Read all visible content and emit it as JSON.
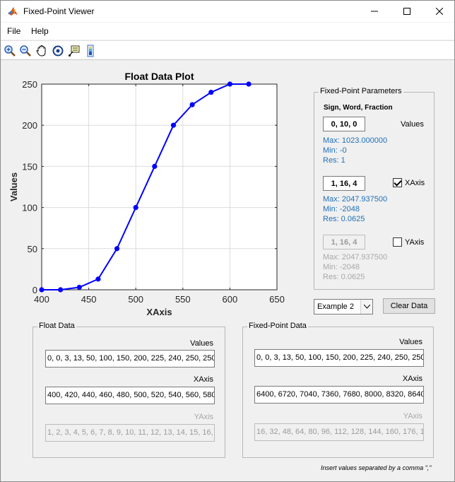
{
  "window": {
    "title": "Fixed-Point Viewer",
    "icon": "matlab-icon"
  },
  "menu": {
    "file": "File",
    "help": "Help"
  },
  "toolbar": {
    "tools": [
      "zoom-in-icon",
      "zoom-out-icon",
      "pan-icon",
      "rotate-icon",
      "data-cursor-icon",
      "colorbar-icon"
    ]
  },
  "chart_data": {
    "type": "line",
    "title": "Float Data Plot",
    "xlabel": "XAxis",
    "ylabel": "Values",
    "xlim": [
      400,
      650
    ],
    "ylim": [
      0,
      250
    ],
    "xticks": [
      400,
      450,
      500,
      550,
      600,
      650
    ],
    "yticks": [
      0,
      50,
      100,
      150,
      200,
      250
    ],
    "grid": true,
    "series": [
      {
        "color": "#0000ff",
        "x": [
          400,
          420,
          440,
          460,
          480,
          500,
          520,
          540,
          560,
          580,
          600,
          620
        ],
        "y": [
          0,
          0,
          3,
          13,
          50,
          100,
          150,
          200,
          225,
          240,
          250,
          250
        ]
      }
    ]
  },
  "params": {
    "legend": "Fixed-Point Parameters",
    "header": "Sign, Word, Fraction",
    "values": {
      "box": "0, 10, 0",
      "label": "Values",
      "max": "Max:  1023.000000",
      "min": "Min:  -0",
      "res": "Res:  1"
    },
    "xaxis": {
      "box": "1, 16, 4",
      "label": "XAxis",
      "checked": true,
      "max": "Max:  2047.937500",
      "min": "Min:  -2048",
      "res": "Res:  0.0625"
    },
    "yaxis": {
      "box": "1, 16, 4",
      "label": "YAxis",
      "checked": false,
      "max": "Max:  2047.937500",
      "min": "Min:  -2048",
      "res": "Res:  0.0625"
    }
  },
  "example_select": "Example 2",
  "clear_button": "Clear Data",
  "float_data": {
    "legend": "Float Data",
    "values_label": "Values",
    "values": "0, 0, 3, 13, 50, 100, 150, 200, 225, 240, 250, 250",
    "xaxis_label": "XAxis",
    "xaxis": "400, 420, 440, 460, 480, 500, 520, 540, 560, 580",
    "yaxis_label": "YAxis",
    "yaxis": "1, 2, 3, 4, 5, 6, 7, 8, 9, 10, 11, 12, 13, 14, 15, 16,"
  },
  "fixed_data": {
    "legend": "Fixed-Point Data",
    "values_label": "Values",
    "values": "0, 0, 3, 13, 50, 100, 150, 200, 225, 240, 250, 250",
    "xaxis_label": "XAxis",
    "xaxis": "6400, 6720, 7040, 7360, 7680, 8000, 8320, 8640",
    "yaxis_label": "YAxis",
    "yaxis": "16, 32, 48, 64, 80, 96, 112, 128, 144, 160, 176, 19"
  },
  "footnote": "Insert values separated by a comma \",\""
}
